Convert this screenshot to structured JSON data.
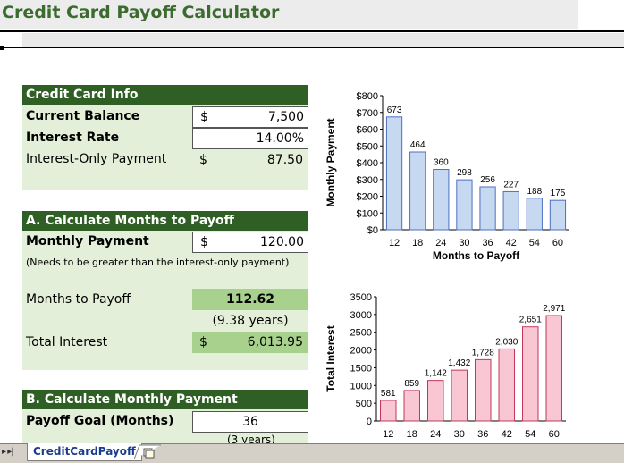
{
  "title": "Credit Card Payoff Calculator",
  "info": {
    "header": "Credit Card Info",
    "current_balance_label": "Current Balance",
    "current_balance_currency": "$",
    "current_balance_value": "7,500",
    "interest_rate_label": "Interest Rate",
    "interest_rate_value": "14.00%",
    "interest_only_label": "Interest-Only Payment",
    "interest_only_currency": "$",
    "interest_only_value": "87.50"
  },
  "section_a": {
    "header": "A. Calculate Months to Payoff",
    "monthly_payment_label": "Monthly Payment",
    "monthly_payment_currency": "$",
    "monthly_payment_value": "120.00",
    "note": "(Needs to be greater than the interest-only payment)",
    "months_label": "Months to Payoff",
    "months_value": "112.62",
    "years_value": "(9.38 years)",
    "total_interest_label": "Total Interest",
    "total_interest_currency": "$",
    "total_interest_value": "6,013.95"
  },
  "section_b": {
    "header": "B. Calculate Monthly Payment",
    "payoff_goal_label": "Payoff Goal (Months)",
    "payoff_goal_value": "36",
    "payoff_goal_years": "(3 years)"
  },
  "sheet_tabs": {
    "nav": "▸ ▸|",
    "active": "CreditCardPayoff"
  },
  "colors": {
    "header_green": "#2f5f25",
    "section_bg": "#e3efd8",
    "result_green": "#a9d18e",
    "title_green": "#3c6b2f",
    "chart1_bar": "#c6d9f1",
    "chart1_border": "#4f6fc0",
    "chart2_bar": "#f9c6d4",
    "chart2_border": "#c0395a"
  },
  "chart_data": [
    {
      "type": "bar",
      "categories": [
        "12",
        "18",
        "24",
        "30",
        "36",
        "42",
        "54",
        "60"
      ],
      "values": [
        673,
        464,
        360,
        298,
        256,
        227,
        188,
        175
      ],
      "value_labels": [
        "673",
        "464",
        "360",
        "298",
        "256",
        "227",
        "188",
        "175"
      ],
      "xlabel": "Months to Payoff",
      "ylabel": "Monthly Payment",
      "ylim": [
        0,
        800
      ],
      "yticks": [
        "$0",
        "$100",
        "$200",
        "$300",
        "$400",
        "$500",
        "$600",
        "$700",
        "$800"
      ],
      "ytick_values": [
        0,
        100,
        200,
        300,
        400,
        500,
        600,
        700,
        800
      ],
      "grid": false
    },
    {
      "type": "bar",
      "categories": [
        "12",
        "18",
        "24",
        "30",
        "36",
        "42",
        "54",
        "60"
      ],
      "values": [
        581,
        859,
        1142,
        1432,
        1728,
        2030,
        2651,
        2971
      ],
      "value_labels": [
        "581",
        "859",
        "1,142",
        "1,432",
        "1,728",
        "2,030",
        "2,651",
        "2,971"
      ],
      "xlabel": "",
      "ylabel": "Total Interest",
      "ylim": [
        0,
        3500
      ],
      "yticks": [
        "0",
        "500",
        "1000",
        "1500",
        "2000",
        "2500",
        "3000",
        "3500"
      ],
      "ytick_values": [
        0,
        500,
        1000,
        1500,
        2000,
        2500,
        3000,
        3500
      ],
      "grid": false
    }
  ]
}
